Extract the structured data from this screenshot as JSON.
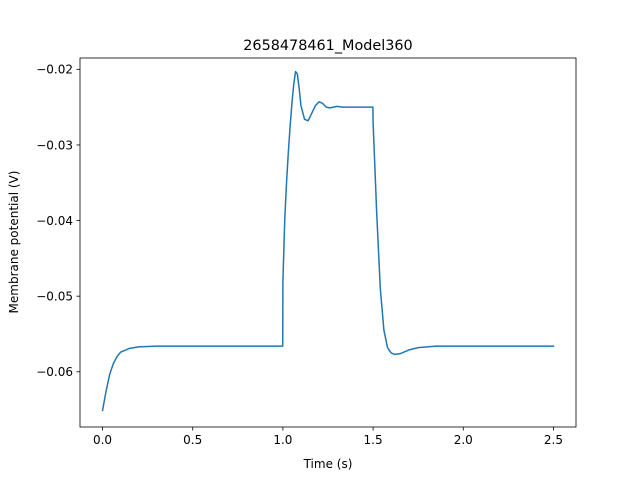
{
  "chart_data": {
    "type": "line",
    "title": "2658478461_Model360",
    "xlabel": "Time (s)",
    "ylabel": "Membrane potential (V)",
    "xlim": [
      -0.125,
      2.625
    ],
    "ylim": [
      -0.0673,
      -0.0185
    ],
    "xticks": [
      0.0,
      0.5,
      1.0,
      1.5,
      2.0,
      2.5
    ],
    "xtick_labels": [
      "0.0",
      "0.5",
      "1.0",
      "1.5",
      "2.0",
      "2.5"
    ],
    "yticks": [
      -0.02,
      -0.03,
      -0.04,
      -0.05,
      -0.06
    ],
    "ytick_labels": [
      "−0.02",
      "−0.03",
      "−0.04",
      "−0.05",
      "−0.06"
    ],
    "grid": false,
    "series": [
      {
        "color": "#1f77b4",
        "x": [
          0.0,
          0.02,
          0.04,
          0.06,
          0.08,
          0.1,
          0.15,
          0.2,
          0.3,
          0.5,
          0.8,
          0.999,
          1.0,
          1.01,
          1.02,
          1.03,
          1.04,
          1.05,
          1.06,
          1.07,
          1.08,
          1.09,
          1.1,
          1.12,
          1.14,
          1.16,
          1.18,
          1.2,
          1.22,
          1.24,
          1.26,
          1.28,
          1.3,
          1.33,
          1.36,
          1.4,
          1.45,
          1.499,
          1.5,
          1.51,
          1.52,
          1.54,
          1.56,
          1.58,
          1.6,
          1.62,
          1.65,
          1.68,
          1.7,
          1.75,
          1.8,
          1.85,
          1.9,
          2.0,
          2.2,
          2.5
        ],
        "y": [
          -0.0651,
          -0.0625,
          -0.0603,
          -0.0589,
          -0.058,
          -0.0574,
          -0.0569,
          -0.0567,
          -0.0566,
          -0.0566,
          -0.0566,
          -0.0566,
          -0.048,
          -0.04,
          -0.035,
          -0.031,
          -0.0275,
          -0.0245,
          -0.022,
          -0.0203,
          -0.0206,
          -0.0225,
          -0.0248,
          -0.0266,
          -0.0268,
          -0.0258,
          -0.0248,
          -0.0243,
          -0.0245,
          -0.025,
          -0.0251,
          -0.025,
          -0.0249,
          -0.025,
          -0.025,
          -0.025,
          -0.025,
          -0.025,
          -0.027,
          -0.033,
          -0.039,
          -0.049,
          -0.0545,
          -0.0568,
          -0.0575,
          -0.0577,
          -0.0576,
          -0.0573,
          -0.0571,
          -0.0568,
          -0.0567,
          -0.0566,
          -0.0566,
          -0.0566,
          -0.0566,
          -0.0566
        ]
      }
    ]
  }
}
